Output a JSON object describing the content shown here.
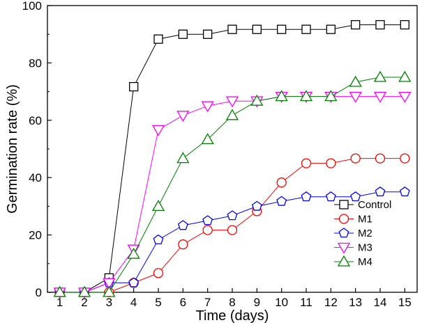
{
  "chart_data": {
    "type": "line",
    "title": "",
    "xlabel": "Time (days)",
    "ylabel": "Germination rate (%)",
    "xlim": [
      0.5,
      15.5
    ],
    "ylim": [
      0,
      100
    ],
    "x": [
      1,
      2,
      3,
      4,
      5,
      6,
      7,
      8,
      9,
      10,
      11,
      12,
      13,
      14,
      15
    ],
    "xticks": [
      1,
      2,
      3,
      4,
      5,
      6,
      7,
      8,
      9,
      10,
      11,
      12,
      13,
      14,
      15
    ],
    "yticks": [
      0,
      20,
      40,
      60,
      80,
      100
    ],
    "grid": false,
    "legend_position": "bottom-right",
    "series": [
      {
        "name": "Control",
        "marker": "square",
        "color": "#000000",
        "values": [
          0,
          0,
          5,
          71.7,
          88.3,
          90,
          90,
          91.7,
          91.7,
          91.7,
          91.7,
          91.7,
          93.3,
          93.3,
          93.3
        ]
      },
      {
        "name": "M1",
        "marker": "circle",
        "color": "#ff0000",
        "values": [
          0,
          0,
          0,
          3.3,
          6.7,
          16.7,
          21.7,
          21.7,
          28.3,
          38.3,
          45,
          45,
          46.7,
          46.7,
          46.7
        ]
      },
      {
        "name": "M2",
        "marker": "pentagon",
        "color": "#0000ff",
        "values": [
          0,
          0,
          3.3,
          3.3,
          18.3,
          23.3,
          25,
          26.7,
          30,
          31.7,
          33.3,
          33.3,
          33.3,
          35,
          35
        ]
      },
      {
        "name": "M3",
        "marker": "triangle-down",
        "color": "#ff00ff",
        "values": [
          0,
          0,
          3.3,
          15,
          56.7,
          61.7,
          65,
          66.7,
          66.7,
          68.3,
          68.3,
          68.3,
          68.3,
          68.3,
          68.3
        ]
      },
      {
        "name": "M4",
        "marker": "triangle-up",
        "color": "#008000",
        "values": [
          0,
          0,
          0,
          13.3,
          30,
          46.7,
          53.3,
          61.7,
          66.7,
          68.3,
          68.3,
          68.3,
          73.3,
          75,
          75
        ]
      }
    ]
  }
}
